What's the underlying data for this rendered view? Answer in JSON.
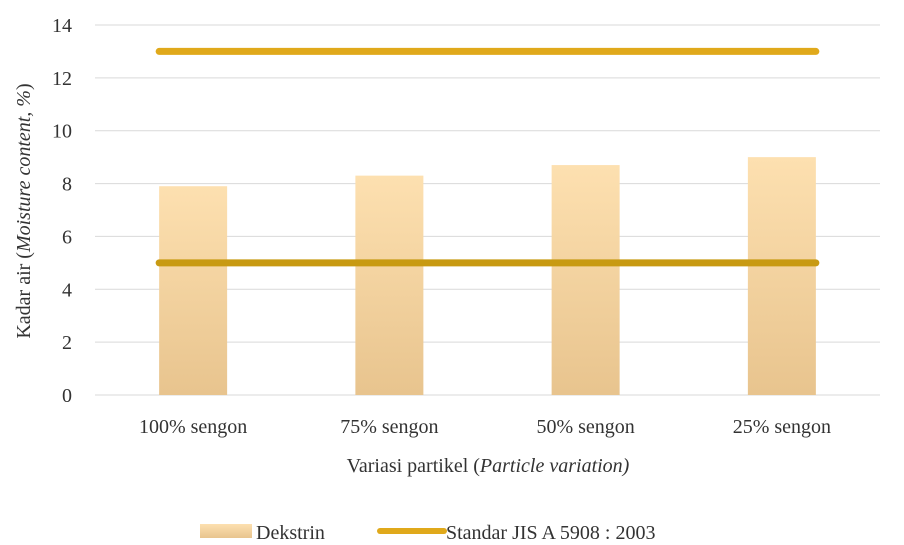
{
  "chart_data": {
    "type": "bar",
    "categories": [
      "100% sengon",
      "75% sengon",
      "50% sengon",
      "25% sengon"
    ],
    "series": [
      {
        "name": "Dekstrin",
        "type": "bar",
        "values": [
          7.9,
          8.3,
          8.7,
          9.0
        ]
      }
    ],
    "reference_lines": [
      {
        "name": "Standar JIS A 5908 : 2003",
        "values": [
          5,
          13
        ]
      }
    ],
    "ylim": [
      0,
      14
    ],
    "yticks": [
      "0",
      "2",
      "4",
      "6",
      "8",
      "10",
      "12",
      "14"
    ],
    "ylabel": {
      "plain": "Kadar air (",
      "italic": "Moisture content, %",
      "end": ")"
    },
    "xlabel": {
      "plain": "Variasi partikel (",
      "italic": "Particle variation)",
      "end": ""
    },
    "grid": true,
    "legend_position": "bottom",
    "colors": {
      "bar_top": "#FDE0B0",
      "bar_bottom": "#E8C48E",
      "line_upper": "#E0A91B",
      "line_lower": "#C89A12",
      "grid": "#d9d9d9"
    }
  }
}
